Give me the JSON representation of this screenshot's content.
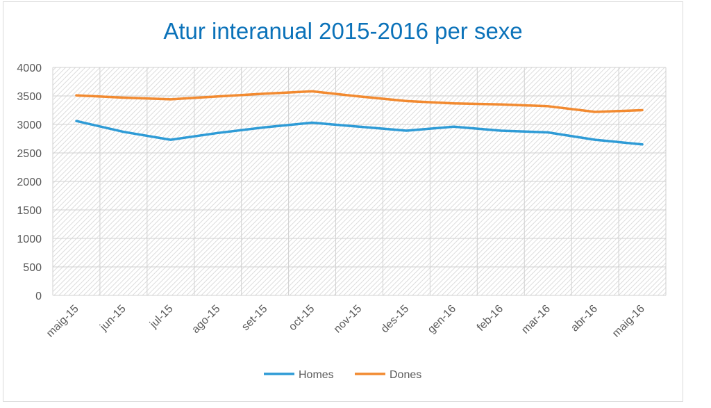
{
  "chart_data": {
    "type": "line",
    "title": "Atur interanual 2015-2016 per sexe",
    "xlabel": "",
    "ylabel": "",
    "categories": [
      "maig-15",
      "jun-15",
      "jul-15",
      "ago-15",
      "set-15",
      "oct-15",
      "nov-15",
      "des-15",
      "gen-16",
      "feb-16",
      "mar-16",
      "abr-16",
      "maig-16"
    ],
    "ylim": [
      0,
      4000
    ],
    "yticks": [
      0,
      500,
      1000,
      1500,
      2000,
      2500,
      3000,
      3500,
      4000
    ],
    "grid": true,
    "legend_position": "bottom",
    "series": [
      {
        "name": "Homes",
        "color": "#2e9bd6",
        "values": [
          3060,
          2870,
          2730,
          2850,
          2950,
          3030,
          2960,
          2890,
          2960,
          2890,
          2860,
          2730,
          2650
        ]
      },
      {
        "name": "Dones",
        "color": "#f28a30",
        "values": [
          3510,
          3470,
          3440,
          3490,
          3540,
          3580,
          3490,
          3410,
          3370,
          3350,
          3320,
          3220,
          3250
        ]
      }
    ]
  }
}
